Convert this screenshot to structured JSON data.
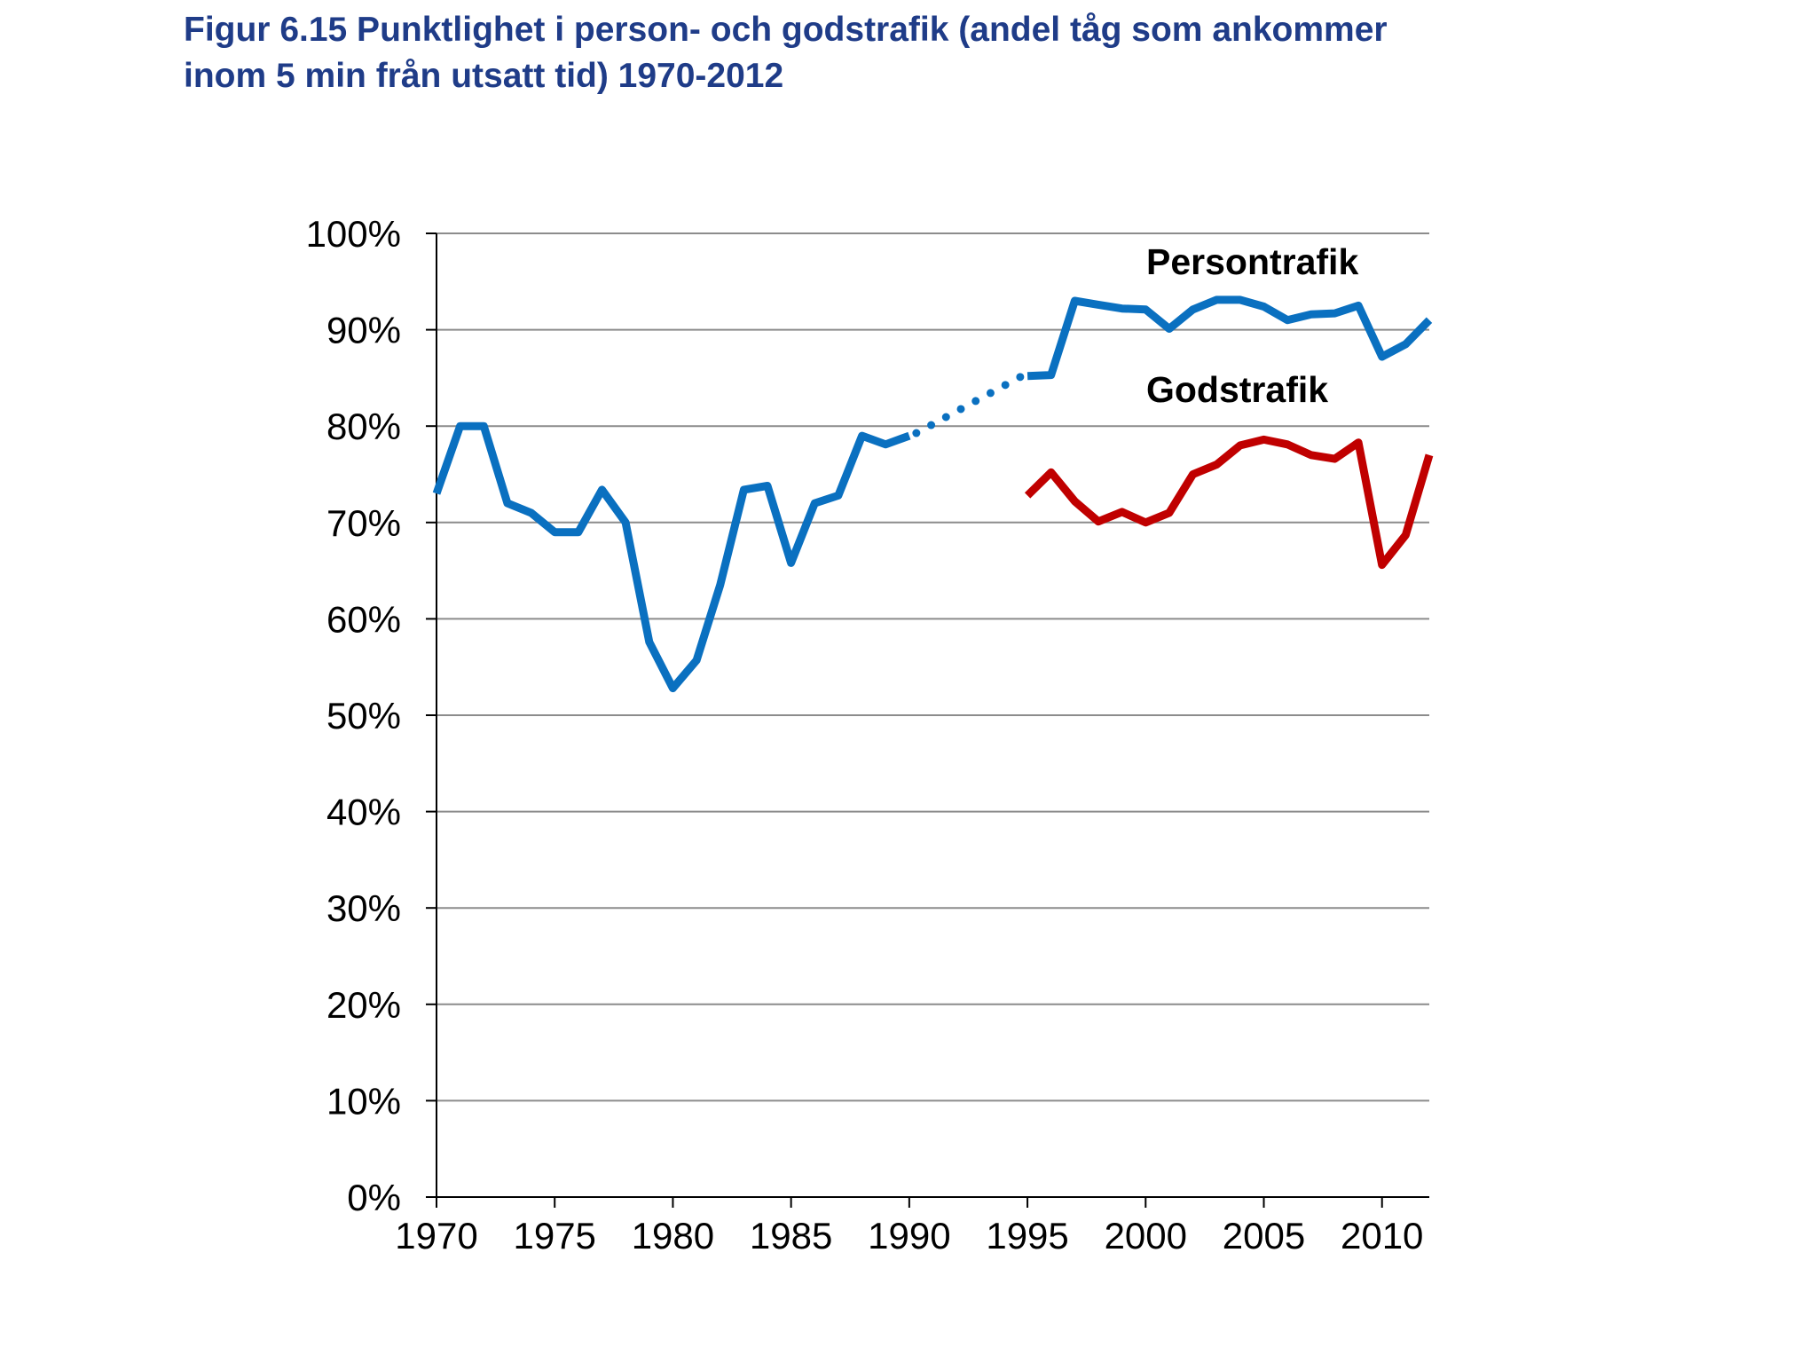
{
  "chart_data": {
    "type": "line",
    "title_lines": [
      "Figur 6.15 Punktlighet i person- och godstrafik (andel tåg som ankommer",
      "inom 5 min från utsatt tid) 1970-2012"
    ],
    "xlabel": "",
    "ylabel": "",
    "xlim": [
      1970,
      2012
    ],
    "ylim": [
      0,
      100
    ],
    "x_ticks": [
      1970,
      1975,
      1980,
      1985,
      1990,
      1995,
      2000,
      2005,
      2010
    ],
    "x_tick_labels": [
      "1970",
      "1975",
      "1980",
      "1985",
      "1990",
      "1995",
      "2000",
      "2005",
      "2010"
    ],
    "y_ticks": [
      0,
      10,
      20,
      30,
      40,
      50,
      60,
      70,
      80,
      90,
      100
    ],
    "y_tick_labels": [
      "0%",
      "10%",
      "20%",
      "30%",
      "40%",
      "50%",
      "60%",
      "70%",
      "80%",
      "90%",
      "100%"
    ],
    "grid": "horizontal",
    "legend": "inline labels",
    "series": [
      {
        "name": "Persontrafik",
        "color": "#0a70c0",
        "x": [
          1970,
          1971,
          1972,
          1973,
          1974,
          1975,
          1976,
          1977,
          1978,
          1979,
          1980,
          1981,
          1982,
          1983,
          1984,
          1985,
          1986,
          1987,
          1988,
          1989,
          1990,
          1995,
          1996,
          1997,
          1998,
          1999,
          2000,
          2001,
          2002,
          2003,
          2004,
          2005,
          2006,
          2007,
          2008,
          2009,
          2010,
          2011,
          2012
        ],
        "values": [
          73,
          80,
          80,
          72,
          71,
          69,
          69,
          73.4,
          70,
          57.6,
          52.8,
          55.7,
          63.5,
          73.4,
          73.8,
          65.8,
          72,
          72.8,
          79,
          78.1,
          79,
          85.2,
          85.3,
          93,
          92.6,
          92.2,
          92.1,
          90.1,
          92.1,
          93.1,
          93.1,
          92.4,
          91,
          91.6,
          91.7,
          92.5,
          87.2,
          88.5,
          91
        ]
      },
      {
        "name": "Godstrafik",
        "color": "#c00000",
        "x": [
          1995,
          1996,
          1997,
          1998,
          1999,
          2000,
          2001,
          2002,
          2003,
          2004,
          2005,
          2006,
          2007,
          2008,
          2009,
          2010,
          2011,
          2012
        ],
        "values": [
          72.8,
          75.2,
          72.2,
          70.1,
          71.1,
          70,
          71,
          75,
          76,
          78,
          78.6,
          78.1,
          77,
          76.6,
          78.3,
          65.6,
          68.7,
          77
        ]
      }
    ],
    "dotted_segment": {
      "series": "Persontrafik",
      "x": [
        1990,
        1995
      ],
      "values": [
        79,
        85.2
      ]
    }
  }
}
